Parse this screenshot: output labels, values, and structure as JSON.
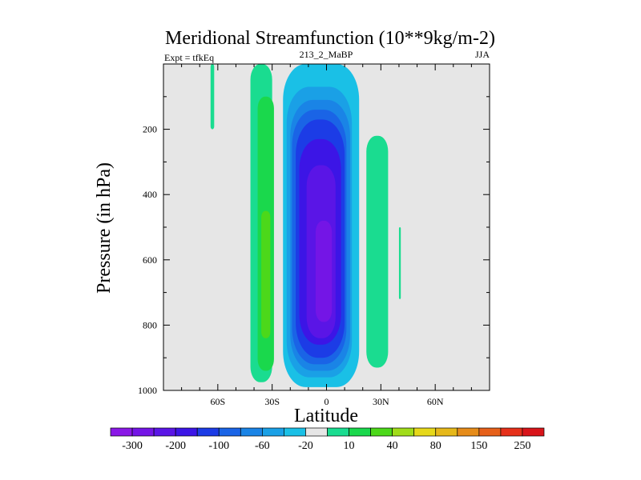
{
  "chart_data": {
    "type": "contour",
    "title": "Meridional Streamfunction (10**9kg/m-2)",
    "subtitle_left": "Expt = tfkEq",
    "subtitle_center": "213_2_MaBP",
    "subtitle_right": "JJA",
    "xlabel": "Latitude",
    "ylabel": "Pressure (in hPa)",
    "xlim": [
      -90,
      90
    ],
    "ylim": [
      1000,
      0
    ],
    "x_ticks": [
      {
        "value": -60,
        "label": "60S"
      },
      {
        "value": -30,
        "label": "30S"
      },
      {
        "value": 0,
        "label": "0"
      },
      {
        "value": 30,
        "label": "30N"
      },
      {
        "value": 60,
        "label": "60N"
      }
    ],
    "y_ticks": [
      {
        "value": 200,
        "label": "200"
      },
      {
        "value": 400,
        "label": "400"
      },
      {
        "value": 600,
        "label": "600"
      },
      {
        "value": 800,
        "label": "800"
      },
      {
        "value": 1000,
        "label": "1000"
      }
    ],
    "background_color": "#e6e6e6",
    "colorbar": {
      "colors": [
        "#8a18e6",
        "#7415e6",
        "#5a15e6",
        "#3c15e6",
        "#1c3ce6",
        "#1a64e6",
        "#1a84e6",
        "#1aa0e6",
        "#1ac0e6",
        "#e6e6e6",
        "#1adc90",
        "#1ad84c",
        "#4cd81a",
        "#a0dc1a",
        "#e6d81a",
        "#e6b81a",
        "#e68c1a",
        "#e6601a",
        "#e6301a",
        "#d8141a"
      ],
      "labels": [
        {
          "after_box": 1,
          "text": "-300"
        },
        {
          "after_box": 3,
          "text": "-200"
        },
        {
          "after_box": 5,
          "text": "-100"
        },
        {
          "after_box": 7,
          "text": "-60"
        },
        {
          "after_box": 9,
          "text": "-20"
        },
        {
          "after_box": 11,
          "text": "10"
        },
        {
          "after_box": 13,
          "text": "40"
        },
        {
          "after_box": 15,
          "text": "80"
        },
        {
          "after_box": 17,
          "text": "150"
        },
        {
          "after_box": 19,
          "text": "250"
        }
      ]
    },
    "regions": [
      {
        "name": "sh-cell-outer",
        "color": "#1adc90",
        "lat": [
          -42,
          -30
        ],
        "p": [
          0,
          975
        ],
        "shape": "cell"
      },
      {
        "name": "sh-cell-mid",
        "color": "#1ad84c",
        "lat": [
          -38,
          -29
        ],
        "p": [
          100,
          940
        ],
        "shape": "cell"
      },
      {
        "name": "sh-cell-core",
        "color": "#4cd81a",
        "lat": [
          -36,
          -31
        ],
        "p": [
          450,
          840
        ],
        "shape": "cell"
      },
      {
        "name": "sh-tiny-cell",
        "color": "#1adc90",
        "lat": [
          -64,
          -62
        ],
        "p": [
          0,
          200
        ],
        "shape": "sliver"
      },
      {
        "name": "nh-cell",
        "color": "#1adc90",
        "lat": [
          22,
          34
        ],
        "p": [
          220,
          930
        ],
        "shape": "cell"
      },
      {
        "name": "nh-tiny-cell",
        "color": "#1adc90",
        "lat": [
          40,
          41
        ],
        "p": [
          500,
          720
        ],
        "shape": "sliver"
      },
      {
        "name": "main-cell-l1",
        "color": "#1ac0e6",
        "lat": [
          -24,
          18
        ],
        "p": [
          0,
          990
        ],
        "shape": "cell"
      },
      {
        "name": "main-cell-l2",
        "color": "#1aa0e6",
        "lat": [
          -22,
          14
        ],
        "p": [
          70,
          960
        ],
        "shape": "cell"
      },
      {
        "name": "main-cell-l3",
        "color": "#1a84e6",
        "lat": [
          -20,
          13
        ],
        "p": [
          110,
          940
        ],
        "shape": "cell"
      },
      {
        "name": "main-cell-l4",
        "color": "#1a64e6",
        "lat": [
          -19,
          11
        ],
        "p": [
          140,
          920
        ],
        "shape": "cell"
      },
      {
        "name": "main-cell-l5",
        "color": "#1c3ce6",
        "lat": [
          -17,
          10
        ],
        "p": [
          170,
          900
        ],
        "shape": "cell"
      },
      {
        "name": "main-cell-l6",
        "color": "#3c15e6",
        "lat": [
          -15,
          8
        ],
        "p": [
          230,
          860
        ],
        "shape": "cell"
      },
      {
        "name": "main-cell-l7",
        "color": "#5a15e6",
        "lat": [
          -11,
          5
        ],
        "p": [
          310,
          840
        ],
        "shape": "cell"
      },
      {
        "name": "main-cell-core",
        "color": "#7415e6",
        "lat": [
          -6,
          3
        ],
        "p": [
          480,
          790
        ],
        "shape": "cell"
      }
    ]
  }
}
